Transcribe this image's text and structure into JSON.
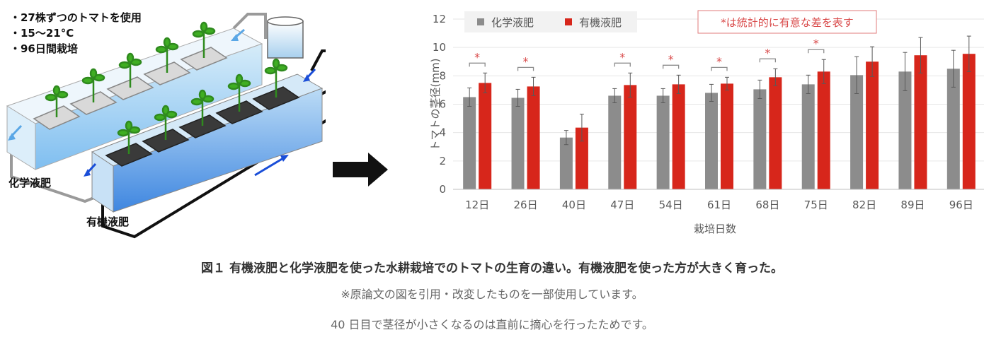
{
  "conditions": [
    "・27株ずつのトマトを使用",
    "・15〜21°C",
    "・96日間栽培"
  ],
  "tank_labels": {
    "chemical": "化学液肥",
    "organic": "有機液肥"
  },
  "chart_data": {
    "type": "bar",
    "categories": [
      "12日",
      "26日",
      "40日",
      "47日",
      "54日",
      "61日",
      "68日",
      "75日",
      "82日",
      "89日",
      "96日"
    ],
    "series": [
      {
        "name": "化学液肥",
        "color": "#8c8c8c",
        "values": [
          6.5,
          6.45,
          3.65,
          6.6,
          6.6,
          6.8,
          7.05,
          7.4,
          8.05,
          8.3,
          8.5
        ],
        "errors": [
          0.65,
          0.6,
          0.5,
          0.5,
          0.5,
          0.6,
          0.65,
          0.65,
          1.3,
          1.35,
          1.3
        ]
      },
      {
        "name": "有機液肥",
        "color": "#d7261b",
        "values": [
          7.5,
          7.25,
          4.35,
          7.35,
          7.4,
          7.45,
          7.9,
          8.3,
          9.0,
          9.45,
          9.55
        ],
        "errors": [
          0.7,
          0.65,
          0.95,
          0.85,
          0.65,
          0.45,
          0.6,
          0.85,
          1.05,
          1.25,
          1.25
        ]
      }
    ],
    "significant": [
      true,
      true,
      false,
      true,
      true,
      true,
      true,
      true,
      false,
      false,
      false
    ],
    "significance_mark": "*",
    "note": "*は統計的に有意な差を表す",
    "xlabel": "栽培日数",
    "ylabel": "トマトの茎径(mm)",
    "ylim": [
      0,
      12
    ],
    "yticks": [
      0,
      2,
      4,
      6,
      8,
      10,
      12
    ],
    "legend_position": "top-left"
  },
  "captions": {
    "main": "図１ 有機液肥と化学液肥を使った水耕栽培でのトマトの生育の違い。有機液肥を使った方が大きく育った。",
    "note1": "※原論文の図を引用・改変したものを一部使用しています。",
    "note2": "40 日目で茎径が小さくなるのは直前に摘心を行ったためです。"
  }
}
